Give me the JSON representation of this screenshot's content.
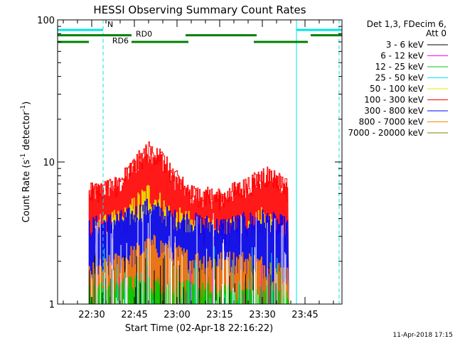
{
  "chart_data": {
    "type": "line",
    "title": "HESSI Observing Summary Count Rates",
    "xlabel": "Start Time (02-Apr-18 22:16:22)",
    "ylabel_main": "Count Rate (s",
    "ylabel_sup1": "-1",
    "ylabel_mid": " detector",
    "ylabel_sup2": "-1",
    "ylabel_end": ")",
    "yscale": "log",
    "ylim": [
      1,
      100
    ],
    "xlim_minutes": [
      -12,
      88
    ],
    "x_tick_minutes": [
      0,
      15,
      30,
      45,
      60,
      75
    ],
    "x_tick_labels": [
      "22:30",
      "22:45",
      "23:00",
      "23:15",
      "23:30",
      "23:45"
    ],
    "y_tick_values": [
      1,
      10,
      100
    ],
    "y_tick_labels": [
      "1",
      "10",
      "100"
    ],
    "timestamp": "11-Apr-2018 17:15",
    "legend_header": [
      "Det 1,3, FDecim 6,",
      "Att 0"
    ],
    "series": [
      {
        "name": "3 - 6 keV",
        "color": "#000000",
        "level": null
      },
      {
        "name": "6 - 12 keV",
        "color": "#ff00ff",
        "level": null
      },
      {
        "name": "12 - 25 keV",
        "color": "#00cc00",
        "level": 1.3
      },
      {
        "name": "25 - 50 keV",
        "color": "#00e5e5",
        "level": null
      },
      {
        "name": "50 - 100 keV",
        "color": "#e5e500",
        "level": 3.5
      },
      {
        "name": "100 - 300 keV",
        "color": "#ff0000",
        "level": 6.0
      },
      {
        "name": "300 - 800 keV",
        "color": "#0000ff",
        "level": 4.0
      },
      {
        "name": "800 - 7000 keV",
        "color": "#ff8000",
        "level": 1.6
      },
      {
        "name": "7000 - 20000 keV",
        "color": "#808000",
        "level": null
      }
    ],
    "data_start_minute": -1,
    "data_end_minute": 69,
    "red_profile": [
      [
        -1,
        6
      ],
      [
        10,
        7
      ],
      [
        14,
        9
      ],
      [
        20,
        12
      ],
      [
        24,
        11
      ],
      [
        28,
        8
      ],
      [
        34,
        6
      ],
      [
        45,
        5.5
      ],
      [
        56,
        7
      ],
      [
        62,
        8
      ],
      [
        68,
        7
      ],
      [
        69,
        6
      ]
    ],
    "blue_profile": [
      [
        -1,
        3.5
      ],
      [
        12,
        4
      ],
      [
        20,
        4.8
      ],
      [
        28,
        4
      ],
      [
        45,
        3.5
      ],
      [
        60,
        4
      ],
      [
        69,
        3.5
      ]
    ],
    "yellow_profile": [
      [
        -1,
        3
      ],
      [
        12,
        4
      ],
      [
        20,
        6
      ],
      [
        28,
        4
      ],
      [
        45,
        3
      ],
      [
        60,
        4
      ],
      [
        69,
        3
      ]
    ],
    "orange_profile": [
      [
        -1,
        1.6
      ],
      [
        10,
        2
      ],
      [
        22,
        2.6
      ],
      [
        35,
        2
      ],
      [
        55,
        2
      ],
      [
        69,
        1.6
      ]
    ],
    "green_profile": [
      [
        -1,
        1.2
      ],
      [
        15,
        1.4
      ],
      [
        30,
        1.3
      ],
      [
        45,
        1.2
      ],
      [
        69,
        1.2
      ]
    ],
    "flags": {
      "N_label": "N",
      "RD0_label": "RD0",
      "RD6_label": "RD6",
      "N_color": "#00e5e5",
      "RD_color": "#008000",
      "N_segments": [
        [
          -12,
          4
        ],
        [
          72,
          88
        ]
      ],
      "RD0_segments": [
        [
          -12,
          14
        ],
        [
          33,
          58
        ],
        [
          77,
          88
        ]
      ],
      "RD6_segments": [
        [
          -12,
          -1
        ],
        [
          14,
          34
        ],
        [
          57,
          76
        ]
      ],
      "N_level": 85,
      "RD0_level": 78,
      "RD6_level": 70,
      "vlines_solid_minutes": [
        -12,
        72
      ],
      "vlines_dashed_minutes": [
        4,
        87
      ]
    }
  }
}
